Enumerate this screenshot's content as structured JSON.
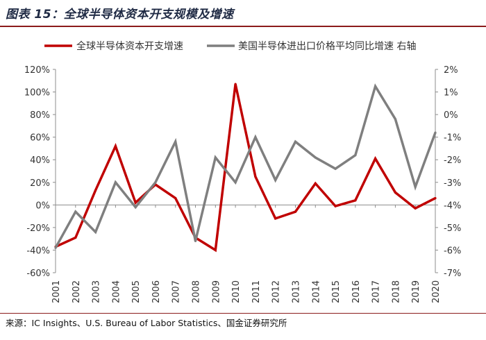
{
  "figure": {
    "title": "图表 15：全球半导体资本开支规模及增速",
    "source": "来源：IC Insights、U.S. Bureau of Labor Statistics、国金证券研究所"
  },
  "colors": {
    "series_capex": "#c00000",
    "series_price": "#7f7f7f",
    "axis": "#8c8c8c"
  },
  "chart_data": {
    "type": "line",
    "title": "",
    "x": [
      "2001",
      "2002",
      "2003",
      "2004",
      "2005",
      "2006",
      "2007",
      "2008",
      "2009",
      "2010",
      "2011",
      "2012",
      "2013",
      "2014",
      "2015",
      "2016",
      "2017",
      "2018",
      "2019",
      "2020"
    ],
    "series": [
      {
        "name": "全球半导体资本开支增速",
        "axis": "left",
        "values": [
          -37,
          -29,
          13,
          52,
          2,
          18,
          6,
          -29,
          -40,
          107,
          25,
          -12,
          -6,
          19,
          -1,
          4,
          41,
          11,
          -3,
          6
        ]
      },
      {
        "name": "美国半导体进出口价格平均同比增速 右轴",
        "axis": "right",
        "values": [
          -5.9,
          -4.3,
          -5.2,
          -3.0,
          -4.1,
          -3.0,
          -1.2,
          -5.6,
          -1.9,
          -3.0,
          -1.0,
          -2.9,
          -1.2,
          -1.9,
          -2.4,
          -1.8,
          1.25,
          -0.2,
          -3.2,
          -0.8
        ]
      }
    ],
    "yaxis_left": {
      "min": -60,
      "max": 120,
      "step": 20,
      "tick_labels": [
        "-60%",
        "-40%",
        "-20%",
        "0%",
        "20%",
        "40%",
        "60%",
        "80%",
        "100%",
        "120%"
      ]
    },
    "yaxis_right": {
      "min": -7,
      "max": 2,
      "step": 1,
      "tick_labels": [
        "-7%",
        "-6%",
        "-5%",
        "-4%",
        "-3%",
        "-2%",
        "-1%",
        "0%",
        "1%",
        "2%"
      ]
    },
    "grid": false,
    "legend_position": "top"
  }
}
